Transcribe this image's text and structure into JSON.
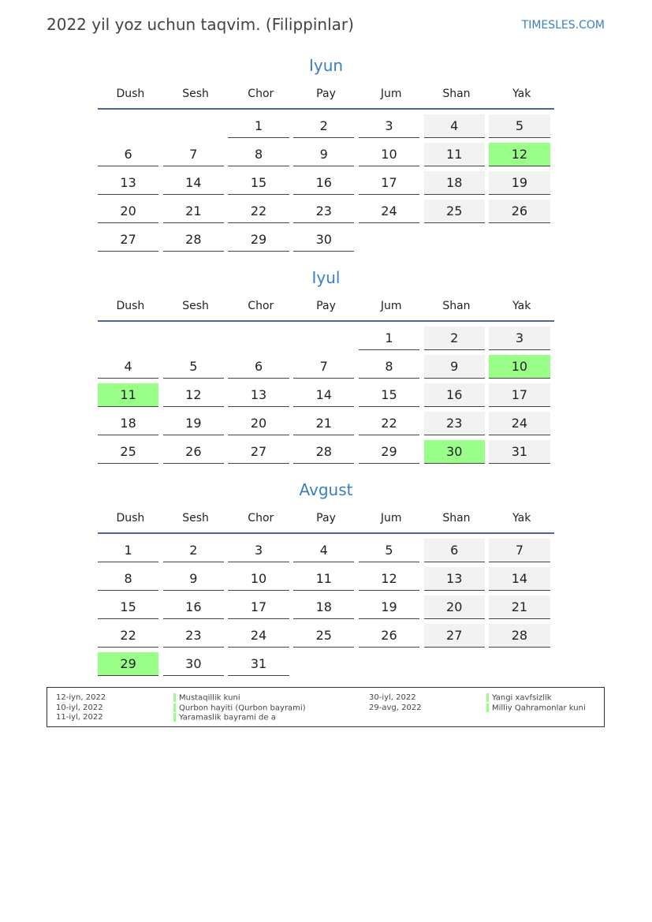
{
  "header": {
    "title": "2022 yil yoz uchun taqvim. (Filippinlar)",
    "brand": "TIMESLES.COM"
  },
  "weekdays": [
    "Dush",
    "Sesh",
    "Chor",
    "Pay",
    "Jum",
    "Shan",
    "Yak"
  ],
  "colors": {
    "accent": "#3a7fc1",
    "holiday": "#99ff88",
    "weekend": "#f2f2f2",
    "rule": "#4a6797"
  },
  "months": [
    {
      "name": "Iyun",
      "weeks": [
        [
          null,
          null,
          1,
          2,
          3,
          4,
          5
        ],
        [
          6,
          7,
          8,
          9,
          10,
          11,
          12
        ],
        [
          13,
          14,
          15,
          16,
          17,
          18,
          19
        ],
        [
          20,
          21,
          22,
          23,
          24,
          25,
          26
        ],
        [
          27,
          28,
          29,
          30,
          null,
          null,
          null
        ]
      ],
      "holidays": [
        12
      ]
    },
    {
      "name": "Iyul",
      "weeks": [
        [
          null,
          null,
          null,
          null,
          1,
          2,
          3
        ],
        [
          4,
          5,
          6,
          7,
          8,
          9,
          10
        ],
        [
          11,
          12,
          13,
          14,
          15,
          16,
          17
        ],
        [
          18,
          19,
          20,
          21,
          22,
          23,
          24
        ],
        [
          25,
          26,
          27,
          28,
          29,
          30,
          31
        ]
      ],
      "holidays": [
        10,
        11,
        30
      ]
    },
    {
      "name": "Avgust",
      "weeks": [
        [
          1,
          2,
          3,
          4,
          5,
          6,
          7
        ],
        [
          8,
          9,
          10,
          11,
          12,
          13,
          14
        ],
        [
          15,
          16,
          17,
          18,
          19,
          20,
          21
        ],
        [
          22,
          23,
          24,
          25,
          26,
          27,
          28
        ],
        [
          29,
          30,
          31,
          null,
          null,
          null,
          null
        ]
      ],
      "holidays": [
        29
      ]
    }
  ],
  "legend": [
    {
      "date": "12-iyn, 2022",
      "name": "Mustaqillik kuni"
    },
    {
      "date": "10-iyl, 2022",
      "name": "Qurbon hayiti (Qurbon bayrami)"
    },
    {
      "date": "11-iyl, 2022",
      "name": "Yaramaslik bayrami de a"
    },
    {
      "date": "30-iyl, 2022",
      "name": "Yangi xavfsizlik"
    },
    {
      "date": "29-avg, 2022",
      "name": "Milliy Qahramonlar kuni"
    }
  ]
}
